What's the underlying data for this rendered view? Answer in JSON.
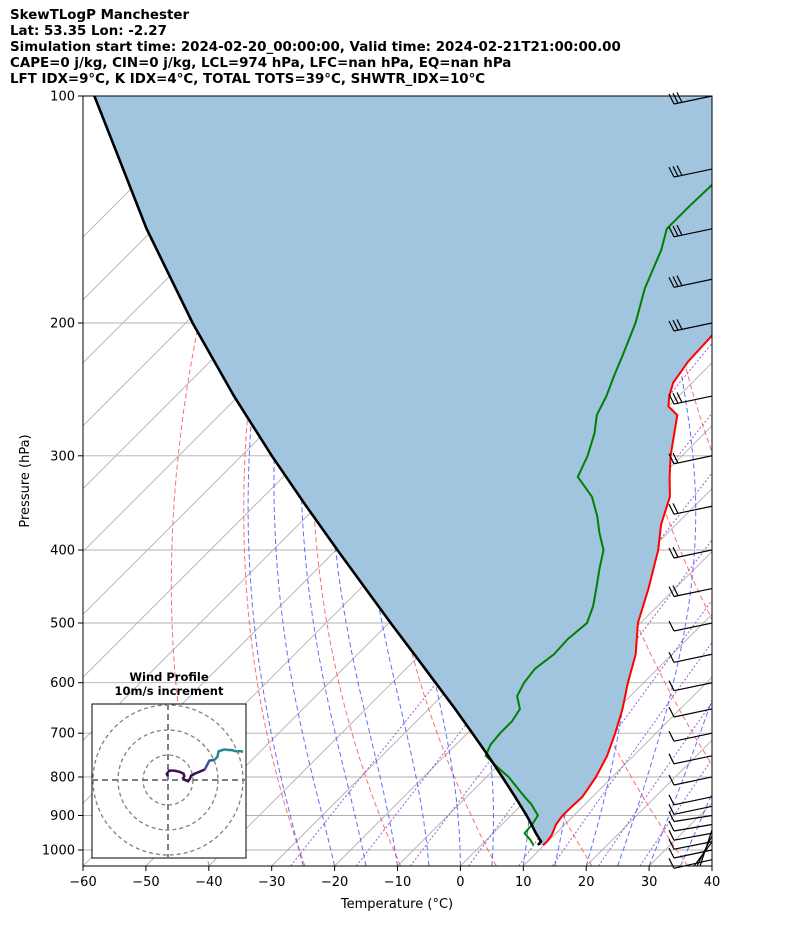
{
  "header": {
    "line1": "SkewTLogP Manchester",
    "line2": "Lat: 53.35   Lon: -2.27",
    "line3": "Simulation start time: 2024-02-20_00:00:00, Valid time: 2024-02-21T21:00:00.00",
    "line4": "CAPE=0 j/kg, CIN=0 j/kg, LCL=974 hPa, LFC=nan hPa, EQ=nan hPa",
    "line5": "LFT IDX=9$^\\circ$C, K IDX=4$^\\circ$C, TOTAL TOTS=39$^\\circ$C, SHWTR_IDX=10$^\\circ$C"
  },
  "inset": {
    "title_line1": "Wind Profile",
    "title_line2": "10m/s increment"
  },
  "colors": {
    "temperature": "#ff0000",
    "dewpoint": "#008000",
    "parcel": "#000000",
    "cape_fill": "#a1c5df",
    "dry_adiabat": "#ff5555",
    "moist_adiabat": "#4455ff",
    "mixing_ratio": "#8833cc",
    "isotherm": "#b0b0b0"
  },
  "chart_data": {
    "type": "line",
    "title": "SkewTLogP Manchester",
    "xlabel": "Temperature ($^\\circ$C)",
    "ylabel": "Pressure (hPa)",
    "xlim": [
      -60,
      40
    ],
    "ylim": [
      1050,
      100
    ],
    "y_scale": "log",
    "grid": true,
    "x_ticks": [
      "−60",
      "−50",
      "−40",
      "−30",
      "−20",
      "−10",
      "0",
      "10",
      "20",
      "30",
      "40"
    ],
    "x_tick_values": [
      -60,
      -50,
      -40,
      -30,
      -20,
      -10,
      0,
      10,
      20,
      30,
      40
    ],
    "y_ticks": [
      "100",
      "200",
      "300",
      "400",
      "500",
      "600",
      "700",
      "800",
      "900",
      "1000"
    ],
    "y_tick_values": [
      100,
      200,
      300,
      400,
      500,
      600,
      700,
      800,
      900,
      1000
    ],
    "series": [
      {
        "key": "temperature",
        "pressure": [
          985,
          975,
          955,
          925,
          900,
          870,
          850,
          800,
          750,
          700,
          650,
          600,
          550,
          500,
          450,
          400,
          370,
          340,
          320,
          300,
          280,
          265,
          258,
          250,
          240,
          225,
          200,
          180,
          160,
          140,
          125,
          110,
          100
        ],
        "temp": [
          9.8,
          9.9,
          9.6,
          8.6,
          8.2,
          8.3,
          8.4,
          7.4,
          5.8,
          3.5,
          0.8,
          -2.5,
          -5.8,
          -10.4,
          -14.2,
          -18.8,
          -22.4,
          -25.4,
          -28.6,
          -31.8,
          -34.8,
          -37.2,
          -40.0,
          -41.5,
          -43.0,
          -44.0,
          -44.5,
          -45.2,
          -45.5,
          -46.5,
          -47.5,
          -48.8,
          -49.5
        ]
      },
      {
        "key": "dewpoint",
        "pressure": [
          985,
          970,
          950,
          925,
          900,
          870,
          850,
          800,
          775,
          750,
          725,
          700,
          675,
          650,
          625,
          600,
          575,
          550,
          525,
          500,
          475,
          450,
          425,
          400,
          380,
          360,
          340,
          320,
          300,
          280,
          265,
          250,
          235,
          220,
          200,
          180,
          160,
          150,
          140,
          120,
          100
        ],
        "dewp": [
          8.3,
          7.0,
          5.0,
          4.8,
          4.3,
          1.5,
          -0.8,
          -6.5,
          -10.0,
          -13.5,
          -14.5,
          -14.8,
          -14.8,
          -15.5,
          -18.0,
          -19.0,
          -19.5,
          -18.8,
          -19.0,
          -18.5,
          -20.2,
          -22.5,
          -25.0,
          -27.5,
          -30.8,
          -34.0,
          -37.8,
          -43.2,
          -45.0,
          -47.5,
          -50.0,
          -51.5,
          -53.5,
          -55.5,
          -58.5,
          -62.5,
          -66.0,
          -68.5,
          -68.5,
          -68.0,
          -69.0
        ]
      },
      {
        "key": "parcel",
        "pressure": [
          985,
          974,
          950,
          925,
          900,
          850,
          800,
          750,
          700,
          650,
          600,
          550,
          500,
          450,
          400,
          350,
          300,
          250,
          200,
          150,
          100
        ],
        "temp": [
          9.0,
          8.9,
          6.8,
          4.7,
          2.5,
          -2.3,
          -7.5,
          -13.1,
          -19.2,
          -25.8,
          -33.1,
          -41.0,
          -49.7,
          -59.2,
          -69.8,
          -81.7,
          -95.2,
          -110.7,
          -128.9,
          -151.2,
          -180.6
        ]
      }
    ],
    "wind_barbs": {
      "pressure": [
        1030,
        1000,
        975,
        950,
        925,
        900,
        875,
        850,
        800,
        750,
        700,
        650,
        600,
        550,
        500,
        450,
        400,
        350,
        300,
        250,
        200,
        175,
        150,
        125,
        100
      ]
    },
    "hodograph": {
      "rings_ms": [
        10,
        20,
        30
      ],
      "segments": [
        {
          "color": "#3c0f53",
          "u": [
            -0.05,
            -0.2,
            0.2,
            1.0,
            1.9,
            2.5,
            2.6,
            2.4,
            2.7,
            3.2,
            3.5,
            3.7,
            4.0,
            4.2,
            5.0,
            5.9
          ],
          "v": [
            0.6,
            1.0,
            1.5,
            1.5,
            1.3,
            1.0,
            0.6,
            0.3,
            0.0,
            -0.2,
            0.2,
            0.7,
            0.8,
            1.0,
            1.3,
            1.7
          ]
        },
        {
          "color": "#3b568c",
          "u": [
            5.9,
            6.2,
            6.6,
            7.4
          ],
          "v": [
            1.7,
            2.3,
            3.1,
            3.2
          ]
        },
        {
          "color": "#23898e",
          "u": [
            7.4,
            7.9,
            8.1,
            9.0,
            9.6,
            10.1,
            10.9,
            11.7,
            12.0
          ],
          "v": [
            3.2,
            3.7,
            4.6,
            4.9,
            4.8,
            4.8,
            4.6,
            4.6,
            4.5
          ]
        }
      ]
    }
  }
}
